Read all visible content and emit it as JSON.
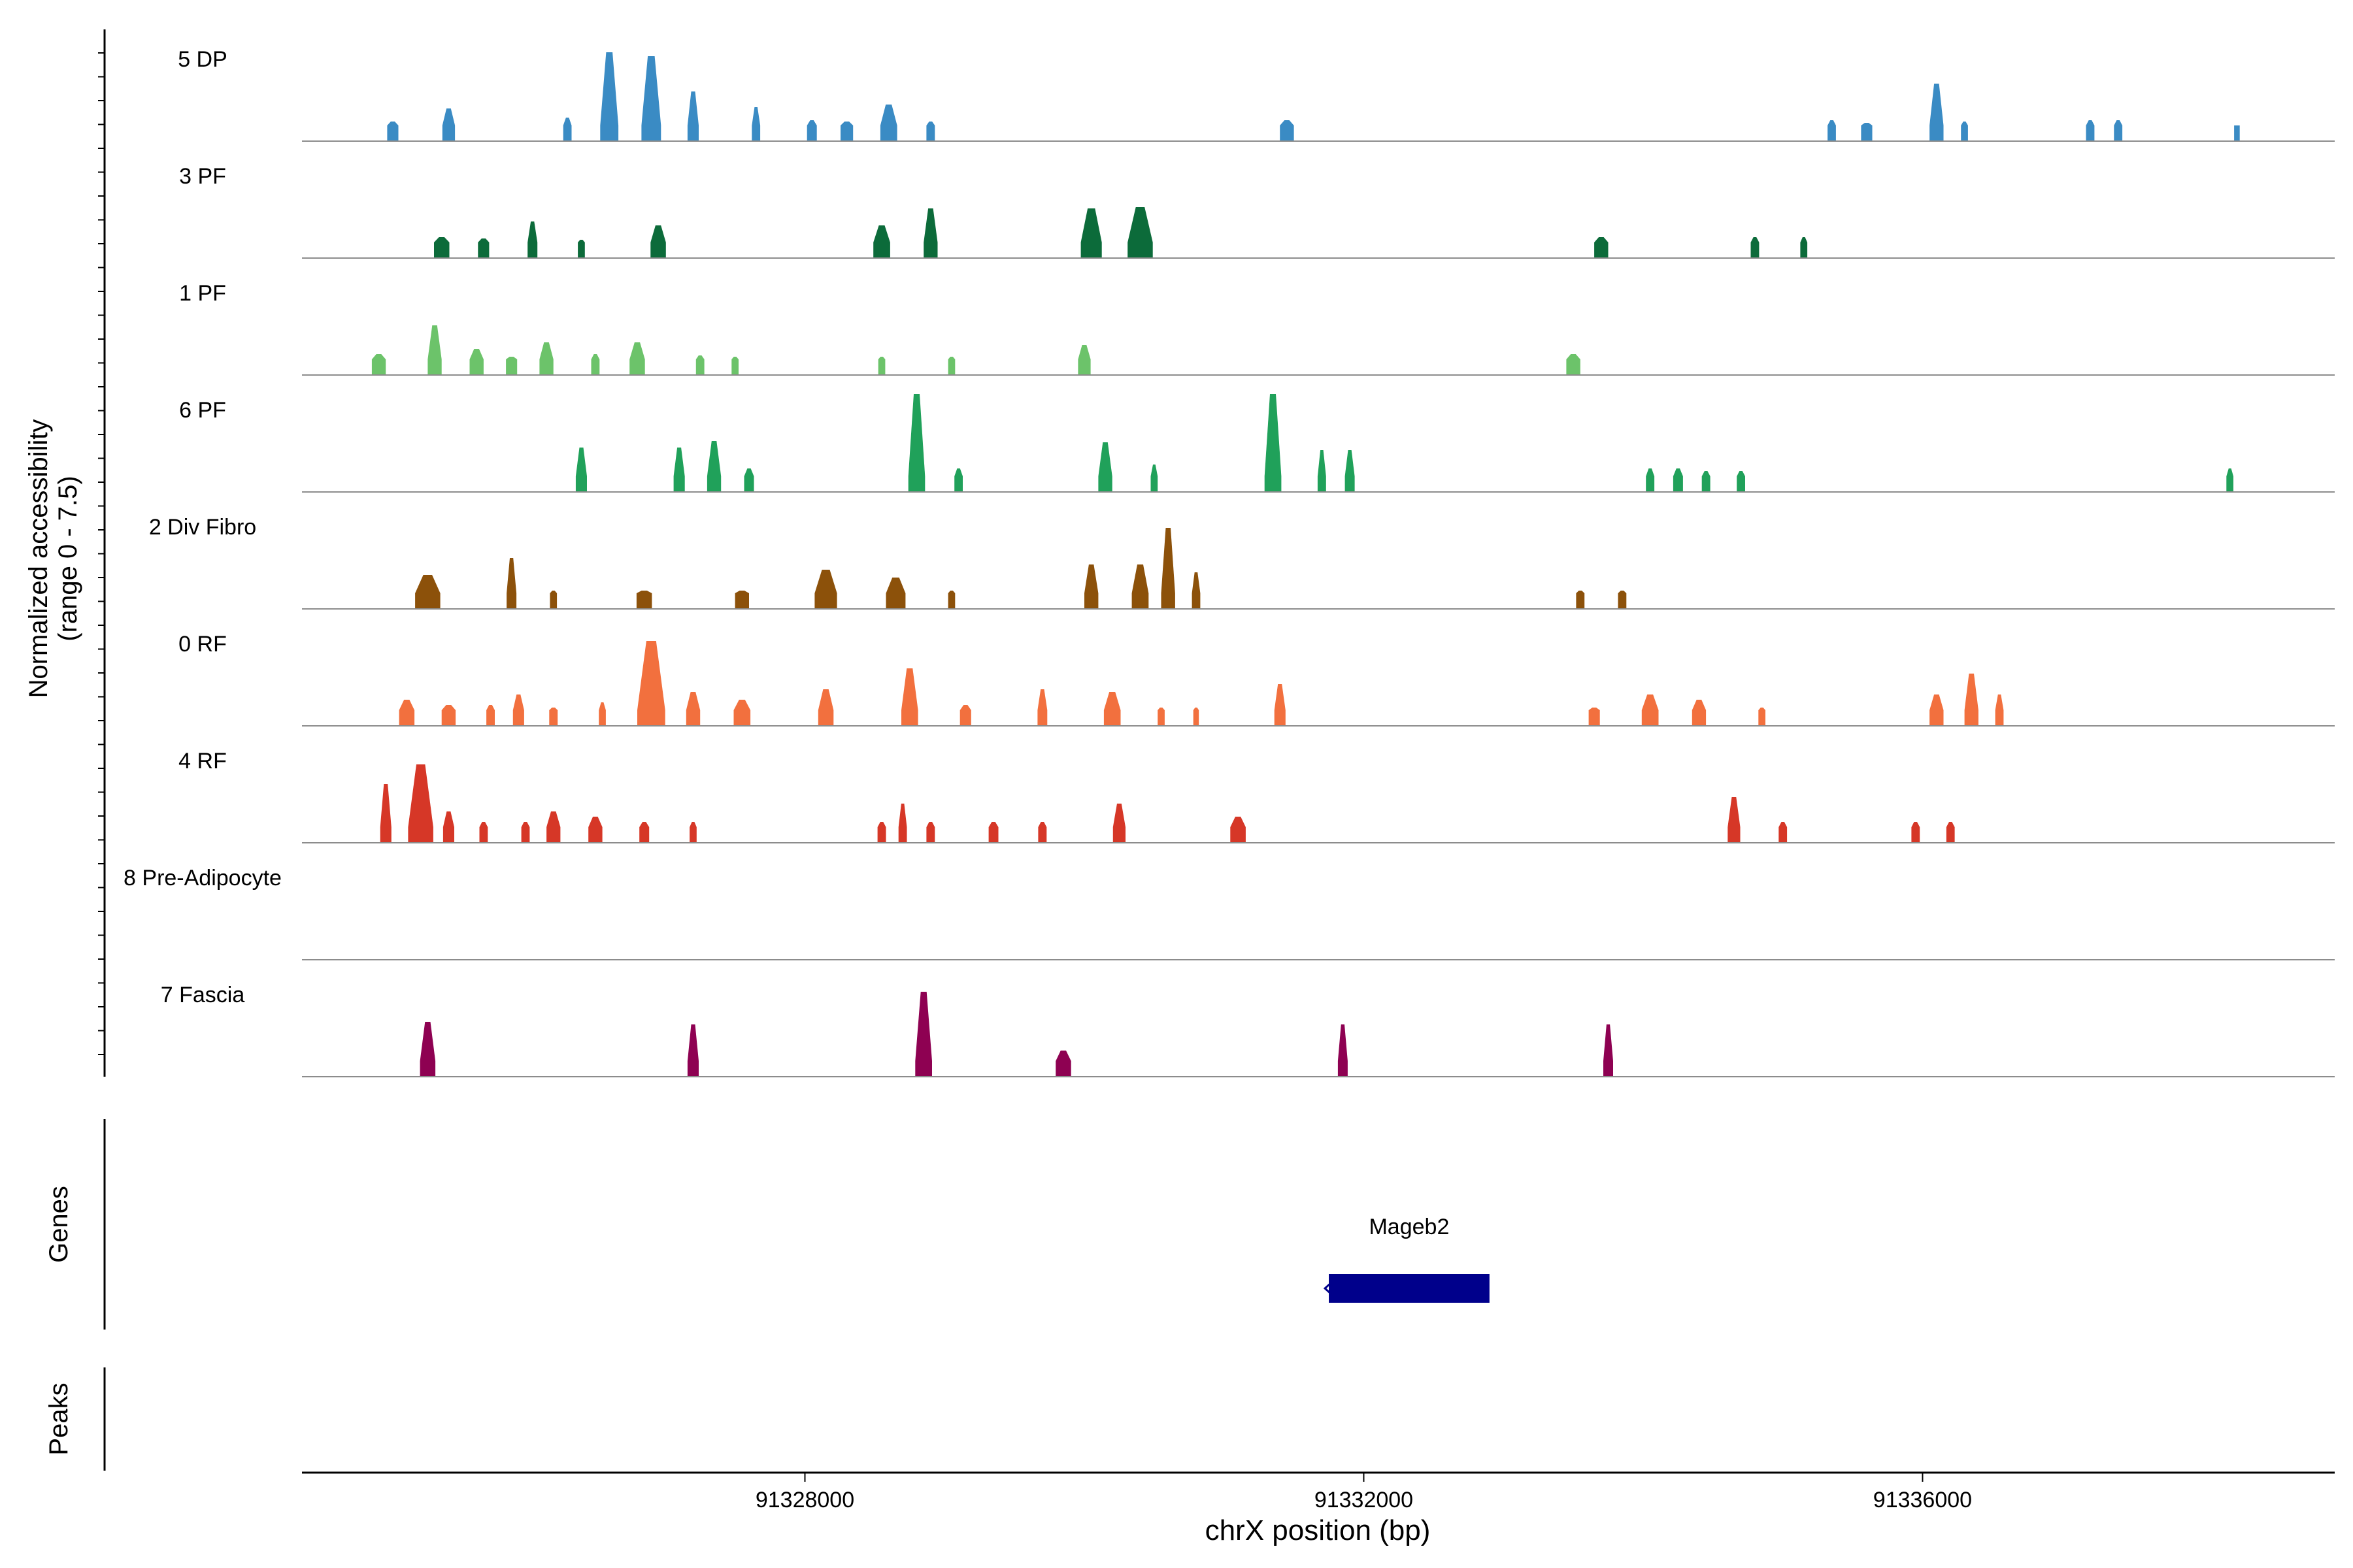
{
  "chart_data": {
    "type": "area",
    "title": "",
    "xlabel": "chrX position (bp)",
    "ylabel_line1": "Normalized accessibility",
    "ylabel_line2": "(range 0 - 7.5)",
    "y_range": [
      0,
      7.5
    ],
    "x_range": [
      91324400,
      91338950
    ],
    "x_ticks": [
      {
        "value": 91328000,
        "label": "91328000"
      },
      {
        "value": 91332000,
        "label": "91332000"
      },
      {
        "value": 91336000,
        "label": "91336000"
      }
    ],
    "tracks": [
      {
        "name": "5 DP",
        "color": "#3A8BC4",
        "peaks": [
          [
            91325050,
            80,
            1.5
          ],
          [
            91325450,
            90,
            2.5
          ],
          [
            91326300,
            60,
            1.8
          ],
          [
            91326600,
            130,
            6.8
          ],
          [
            91326900,
            140,
            6.5
          ],
          [
            91327200,
            80,
            3.8
          ],
          [
            91327650,
            60,
            2.6
          ],
          [
            91328050,
            70,
            1.6
          ],
          [
            91328300,
            90,
            1.5
          ],
          [
            91328600,
            120,
            2.8
          ],
          [
            91328900,
            60,
            1.5
          ],
          [
            91331450,
            100,
            1.6
          ],
          [
            91335350,
            60,
            1.6
          ],
          [
            91335600,
            80,
            1.4
          ],
          [
            91336100,
            100,
            4.4
          ],
          [
            91336300,
            50,
            1.5
          ],
          [
            91337200,
            60,
            1.6
          ],
          [
            91337400,
            60,
            1.6
          ],
          [
            91338250,
            40,
            1.2
          ]
        ]
      },
      {
        "name": "3 PF",
        "color": "#0C6B3A",
        "peaks": [
          [
            91325400,
            110,
            1.6
          ],
          [
            91325700,
            80,
            1.5
          ],
          [
            91326050,
            70,
            2.8
          ],
          [
            91326400,
            50,
            1.4
          ],
          [
            91326950,
            110,
            2.5
          ],
          [
            91328550,
            120,
            2.5
          ],
          [
            91328900,
            100,
            3.8
          ],
          [
            91330050,
            150,
            3.8
          ],
          [
            91330400,
            180,
            3.9
          ],
          [
            91333700,
            100,
            1.6
          ],
          [
            91334800,
            60,
            1.6
          ],
          [
            91335150,
            50,
            1.6
          ]
        ]
      },
      {
        "name": "1 PF",
        "color": "#6CC36A",
        "peaks": [
          [
            91324950,
            100,
            1.6
          ],
          [
            91325350,
            100,
            3.8
          ],
          [
            91325650,
            100,
            2.0
          ],
          [
            91325900,
            80,
            1.4
          ],
          [
            91326150,
            100,
            2.5
          ],
          [
            91326500,
            60,
            1.6
          ],
          [
            91326800,
            110,
            2.5
          ],
          [
            91327250,
            60,
            1.5
          ],
          [
            91327500,
            50,
            1.4
          ],
          [
            91328550,
            50,
            1.4
          ],
          [
            91329050,
            50,
            1.4
          ],
          [
            91330000,
            90,
            2.3
          ],
          [
            91333500,
            100,
            1.6
          ]
        ]
      },
      {
        "name": "6 PF",
        "color": "#20A15A",
        "peaks": [
          [
            91326400,
            80,
            3.4
          ],
          [
            91327100,
            80,
            3.4
          ],
          [
            91327350,
            100,
            3.9
          ],
          [
            91327600,
            70,
            1.8
          ],
          [
            91328800,
            120,
            7.5
          ],
          [
            91329100,
            60,
            1.8
          ],
          [
            91330150,
            100,
            3.8
          ],
          [
            91330500,
            50,
            2.1
          ],
          [
            91331350,
            120,
            7.5
          ],
          [
            91331700,
            60,
            3.2
          ],
          [
            91331900,
            70,
            3.2
          ],
          [
            91334050,
            60,
            1.8
          ],
          [
            91334250,
            70,
            1.8
          ],
          [
            91334450,
            60,
            1.6
          ],
          [
            91334700,
            60,
            1.6
          ],
          [
            91338200,
            50,
            1.8
          ]
        ]
      },
      {
        "name": "2 Div Fibro",
        "color": "#8C510A",
        "peaks": [
          [
            91325300,
            180,
            2.6
          ],
          [
            91325900,
            70,
            3.9
          ],
          [
            91326200,
            50,
            1.4
          ],
          [
            91326850,
            110,
            1.4
          ],
          [
            91327550,
            100,
            1.4
          ],
          [
            91328150,
            160,
            3.0
          ],
          [
            91328650,
            140,
            2.4
          ],
          [
            91329050,
            50,
            1.4
          ],
          [
            91330050,
            100,
            3.4
          ],
          [
            91330400,
            120,
            3.4
          ],
          [
            91330600,
            100,
            6.2
          ],
          [
            91330800,
            60,
            2.8
          ],
          [
            91333550,
            60,
            1.4
          ],
          [
            91333850,
            60,
            1.4
          ]
        ]
      },
      {
        "name": "0 RF",
        "color": "#F2703E",
        "peaks": [
          [
            91325150,
            110,
            2.0
          ],
          [
            91325450,
            100,
            1.6
          ],
          [
            91325750,
            60,
            1.6
          ],
          [
            91325950,
            80,
            2.4
          ],
          [
            91326200,
            60,
            1.4
          ],
          [
            91326550,
            50,
            1.8
          ],
          [
            91326900,
            200,
            6.5
          ],
          [
            91327200,
            100,
            2.6
          ],
          [
            91327550,
            120,
            2.0
          ],
          [
            91328150,
            110,
            2.8
          ],
          [
            91328750,
            120,
            4.4
          ],
          [
            91329150,
            80,
            1.6
          ],
          [
            91329700,
            70,
            2.8
          ],
          [
            91330200,
            120,
            2.6
          ],
          [
            91330550,
            50,
            1.4
          ],
          [
            91330800,
            40,
            1.4
          ],
          [
            91331400,
            80,
            3.2
          ],
          [
            91333650,
            80,
            1.4
          ],
          [
            91334050,
            120,
            2.4
          ],
          [
            91334400,
            100,
            2.0
          ],
          [
            91334850,
            50,
            1.4
          ],
          [
            91336100,
            100,
            2.4
          ],
          [
            91336350,
            100,
            4.0
          ],
          [
            91336550,
            60,
            2.4
          ]
        ]
      },
      {
        "name": "4 RF",
        "color": "#D63727",
        "peaks": [
          [
            91325000,
            80,
            4.5
          ],
          [
            91325250,
            180,
            6.0
          ],
          [
            91325450,
            80,
            2.4
          ],
          [
            91325700,
            60,
            1.6
          ],
          [
            91326000,
            60,
            1.6
          ],
          [
            91326200,
            100,
            2.4
          ],
          [
            91326500,
            100,
            2.0
          ],
          [
            91326850,
            70,
            1.6
          ],
          [
            91327200,
            50,
            1.6
          ],
          [
            91328550,
            60,
            1.6
          ],
          [
            91328700,
            60,
            3.0
          ],
          [
            91328900,
            60,
            1.6
          ],
          [
            91329350,
            70,
            1.6
          ],
          [
            91329700,
            60,
            1.6
          ],
          [
            91330250,
            90,
            3.0
          ],
          [
            91331100,
            110,
            2.0
          ],
          [
            91334650,
            90,
            3.5
          ],
          [
            91335000,
            60,
            1.6
          ],
          [
            91335950,
            60,
            1.6
          ],
          [
            91336200,
            60,
            1.6
          ]
        ]
      },
      {
        "name": "8 Pre-Adipocyte",
        "color": "#6A3D9A",
        "peaks": []
      },
      {
        "name": "7 Fascia",
        "color": "#8E0152",
        "peaks": [
          [
            91325300,
            110,
            4.2
          ],
          [
            91327200,
            80,
            4.0
          ],
          [
            91328850,
            120,
            6.5
          ],
          [
            91329850,
            110,
            2.0
          ],
          [
            91331850,
            70,
            4.0
          ],
          [
            91333750,
            70,
            4.0
          ]
        ]
      }
    ],
    "genes": [
      {
        "name": "Mageb2",
        "start": 91331750,
        "end": 91332900,
        "strand": "-",
        "color": "#00008B"
      }
    ],
    "panel_labels": {
      "genes": "Genes",
      "peaks": "Peaks"
    }
  }
}
